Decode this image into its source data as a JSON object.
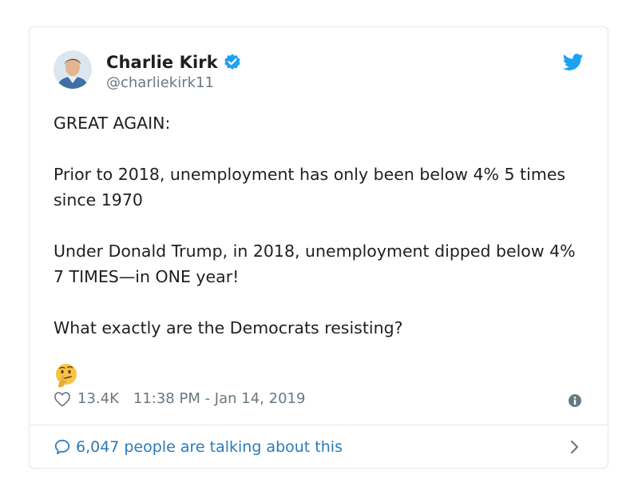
{
  "author": {
    "display_name": "Charlie Kirk",
    "handle": "@charliekirk11",
    "verified": true,
    "avatar": "avatar-photo"
  },
  "tweet": {
    "paragraphs": [
      "GREAT AGAIN:",
      "Prior to 2018, unemployment has only been below 4% 5 times since 1970",
      "Under Donald Trump, in 2018, unemployment dipped below 4% 7 TIMES—in ONE year!",
      "What exactly are the Democrats resisting?"
    ],
    "emoji": "thinking-face-emoji"
  },
  "meta": {
    "likes": "13.4K",
    "timestamp": "11:38 PM - Jan 14, 2019"
  },
  "conversation": {
    "label": "6,047 people are talking about this"
  },
  "icons": {
    "logo": "twitter-bird-icon",
    "verified": "verified-badge-icon",
    "like": "heart-icon",
    "info": "info-icon",
    "reply": "speech-bubble-icon",
    "chevron": "chevron-right-icon"
  },
  "colors": {
    "twitter_blue": "#1da1f2",
    "link_blue": "#2b7bb9",
    "text": "#1c2022",
    "muted": "#697882",
    "border": "#e1e8ed"
  }
}
